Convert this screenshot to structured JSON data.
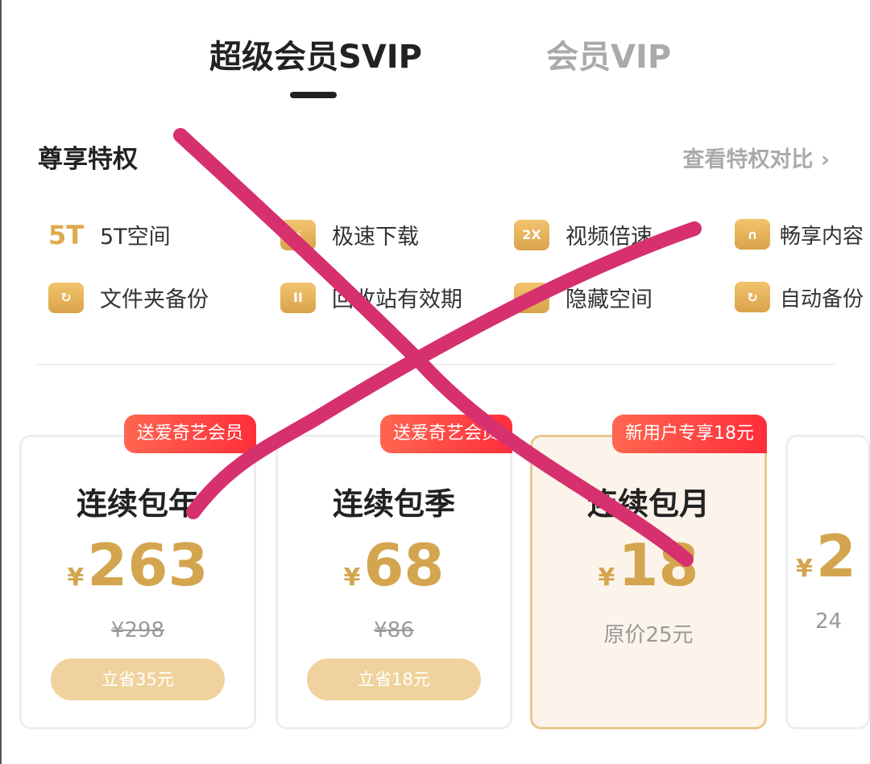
{
  "tabs": [
    {
      "label": "超级会员SVIP",
      "active": true
    },
    {
      "label": "会员VIP",
      "active": false
    }
  ],
  "privileges": {
    "title": "尊享特权",
    "compare_link": "查看特权对比 ›",
    "items": [
      {
        "label": "5T空间",
        "icon": "5T"
      },
      {
        "label": "极速下载",
        "icon": "lightning-icon"
      },
      {
        "label": "视频倍速",
        "icon": "2X"
      },
      {
        "label": "畅享内容",
        "icon": "headphones-icon"
      },
      {
        "label": "文件夹备份",
        "icon": "folder-sync-icon"
      },
      {
        "label": "回收站有效期",
        "icon": "trash-icon"
      },
      {
        "label": "隐藏空间",
        "icon": "lock-folder-icon"
      },
      {
        "label": "自动备份",
        "icon": "monitor-sync-icon"
      }
    ]
  },
  "plans": [
    {
      "badge": "送爱奇艺会员",
      "name": "连续包年",
      "currency": "¥",
      "price": "263",
      "original": "¥298",
      "save": "立省35元"
    },
    {
      "badge": "送爱奇艺会员",
      "name": "连续包季",
      "currency": "¥",
      "price": "68",
      "original": "¥86",
      "save": "立省18元"
    },
    {
      "badge": "新用户专享18元",
      "name": "连续包月",
      "currency": "¥",
      "price": "18",
      "original": "原价25元",
      "selected": true
    },
    {
      "currency": "¥",
      "price": "2",
      "original": "24"
    }
  ],
  "colors": {
    "accent": "#d4a54f",
    "badge": "#ff3a3a",
    "annotation": "#d6306f"
  }
}
